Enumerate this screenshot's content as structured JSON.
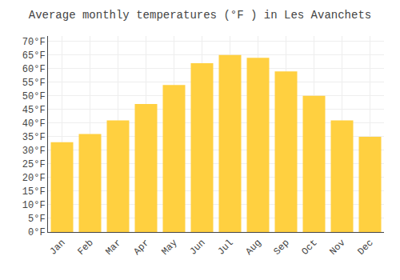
{
  "chart_data": {
    "type": "bar",
    "title": "Average monthly temperatures (°F ) in Les Avanchets",
    "categories": [
      "Jan",
      "Feb",
      "Mar",
      "Apr",
      "May",
      "Jun",
      "Jul",
      "Aug",
      "Sep",
      "Oct",
      "Nov",
      "Dec"
    ],
    "values": [
      33,
      36,
      41,
      47,
      54,
      62,
      65,
      64,
      59,
      50,
      41,
      35
    ],
    "color": "#FFD040",
    "ylim": [
      0,
      72
    ],
    "yticks": [
      {
        "value": 0,
        "label": "0°F"
      },
      {
        "value": 5,
        "label": "5°F"
      },
      {
        "value": 10,
        "label": "10°F"
      },
      {
        "value": 15,
        "label": "15°F"
      },
      {
        "value": 20,
        "label": "20°F"
      },
      {
        "value": 25,
        "label": "25°F"
      },
      {
        "value": 30,
        "label": "30°F"
      },
      {
        "value": 35,
        "label": "35°F"
      },
      {
        "value": 40,
        "label": "40°F"
      },
      {
        "value": 45,
        "label": "45°F"
      },
      {
        "value": 50,
        "label": "50°F"
      },
      {
        "value": 55,
        "label": "55°F"
      },
      {
        "value": 60,
        "label": "60°F"
      },
      {
        "value": 65,
        "label": "65°F"
      },
      {
        "value": 70,
        "label": "70°F"
      }
    ],
    "grid": true
  }
}
